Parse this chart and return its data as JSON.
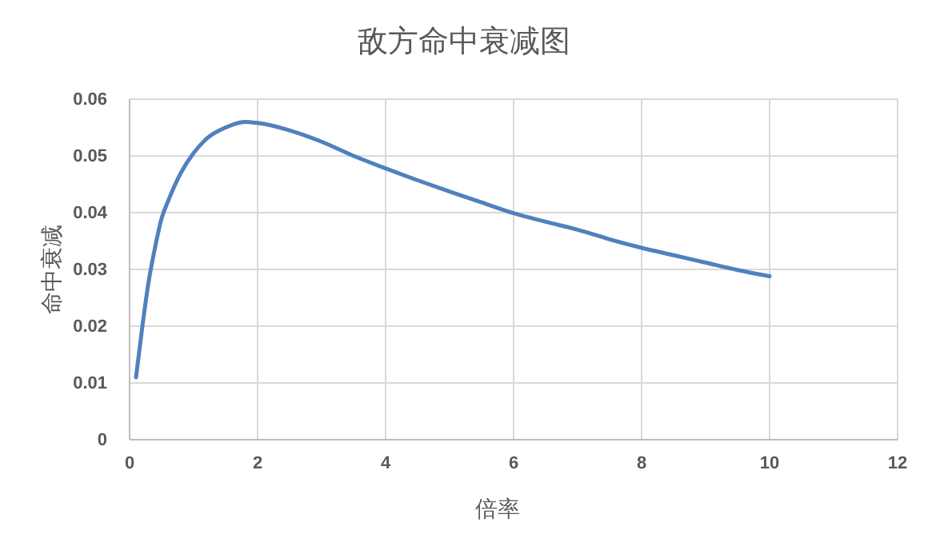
{
  "chart_data": {
    "type": "line",
    "title": "敌方命中衰减图",
    "xlabel": "倍率",
    "ylabel": "命中衰减",
    "x": [
      0.1,
      0.2,
      0.3,
      0.4,
      0.5,
      0.6,
      0.8,
      1.0,
      1.2,
      1.5,
      1.8,
      2,
      2.5,
      3,
      3.5,
      4,
      4.5,
      5,
      5.5,
      6,
      6.5,
      7,
      7.5,
      8,
      8.5,
      9,
      9.5,
      10
    ],
    "series": [
      {
        "color": "#4f81bd",
        "values": [
          0.011,
          0.02,
          0.028,
          0.034,
          0.039,
          0.042,
          0.047,
          0.0505,
          0.053,
          0.055,
          0.056,
          0.0558,
          0.0545,
          0.0525,
          0.05,
          0.0478,
          0.0457,
          0.0437,
          0.0418,
          0.0399,
          0.0384,
          0.037,
          0.0353,
          0.0338,
          0.0325,
          0.0312,
          0.0299,
          0.0288
        ]
      }
    ],
    "xlim": [
      0,
      12
    ],
    "xticks": [
      0,
      2,
      4,
      6,
      8,
      10,
      12
    ],
    "ylim": [
      0,
      0.06
    ],
    "yticks": [
      {
        "value": 0,
        "label": "0"
      },
      {
        "value": 0.01,
        "label": "0.01"
      },
      {
        "value": 0.02,
        "label": "0.02"
      },
      {
        "value": 0.03,
        "label": "0.03"
      },
      {
        "value": 0.04,
        "label": "0.04"
      },
      {
        "value": 0.05,
        "label": "0.05"
      },
      {
        "value": 0.06,
        "label": "0.06"
      }
    ],
    "grid": true,
    "marker": "none",
    "line_style": "solid"
  }
}
